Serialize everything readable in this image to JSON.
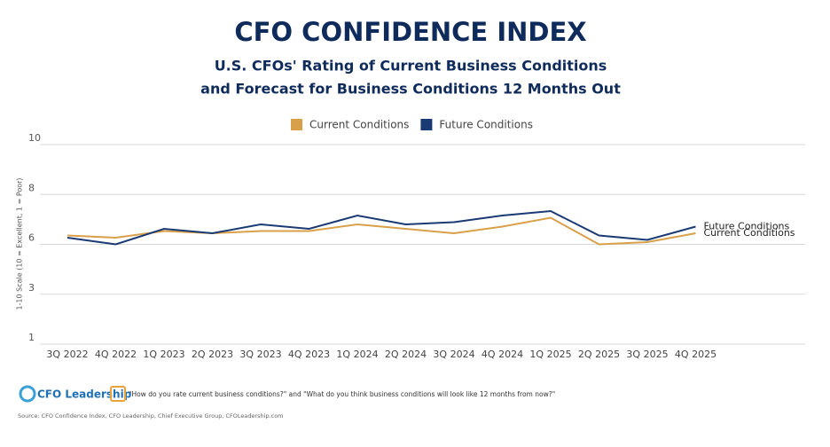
{
  "chart_data": {
    "type": "line",
    "title": "CFO CONFIDENCE INDEX",
    "subtitle": [
      "U.S. CFOs' Rating of Current Business Conditions",
      "and Forecast for Business Conditions 12 Months Out"
    ],
    "ylabel": "1-10 Scale (10 = Excellent, 1 = Poor)",
    "categories": [
      "3Q 2022",
      "4Q 2022",
      "1Q 2023",
      "2Q 2023",
      "3Q 2023",
      "4Q 2023",
      "1Q 2024",
      "2Q 2024",
      "3Q 2024",
      "4Q 2024",
      "1Q 2025",
      "2Q 2025",
      "3Q 2025",
      "4Q 2025"
    ],
    "series": [
      {
        "name": "Current Conditions",
        "color": "#d9a04a",
        "values": [
          5.9,
          5.8,
          6.1,
          6.0,
          6.1,
          6.1,
          6.4,
          6.2,
          6.0,
          6.3,
          6.7,
          5.5,
          5.6,
          6.0
        ]
      },
      {
        "name": "Future Conditions",
        "color": "#1a3a73",
        "values": [
          5.8,
          5.5,
          6.2,
          6.0,
          6.4,
          6.2,
          6.8,
          6.4,
          6.5,
          6.8,
          7.0,
          5.9,
          5.7,
          6.3
        ]
      }
    ],
    "ylim": [
      1,
      10
    ],
    "yticks": [
      1,
      {
        "value": 3.25,
        "label": "3"
      },
      {
        "value": 5.5,
        "label": "6"
      },
      {
        "value": 7.75,
        "label": "8"
      },
      10
    ],
    "grid": true,
    "legend": "top",
    "logo": "CFO Leadership",
    "footnote": "\"How do you rate current business conditions?\" and \"What do you think business conditions will look like 12 months from now?\"",
    "source": "Source: CFO Confidence Index, CFO Leadership, Chief Executive Group, CFOLeadership.com"
  }
}
